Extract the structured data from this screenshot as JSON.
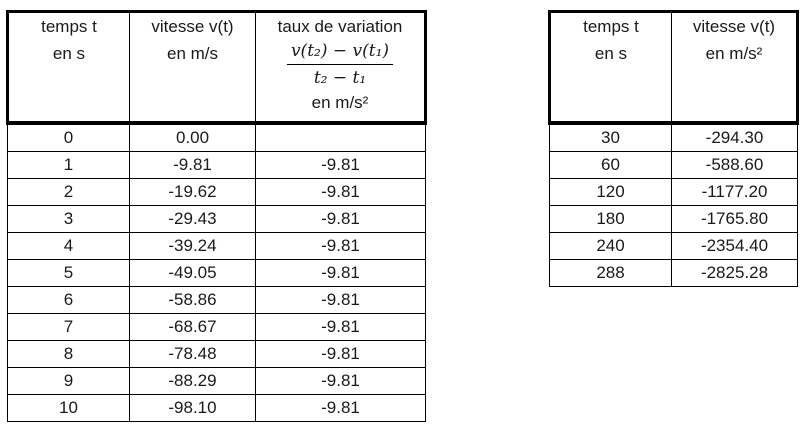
{
  "left_table": {
    "headers": {
      "temps_line1": "temps t",
      "temps_line2": "en s",
      "vitesse_line1": "vitesse v(t)",
      "vitesse_line2": "en m/s",
      "taux_line1": "taux de variation",
      "taux_numerator": "v(t₂) − v(t₁)",
      "taux_denominator": "t₂ − t₁",
      "taux_unit": "en m/s²"
    },
    "rows": [
      {
        "t": "0",
        "v": "0.00",
        "rate": ""
      },
      {
        "t": "1",
        "v": "-9.81",
        "rate": "-9.81"
      },
      {
        "t": "2",
        "v": "-19.62",
        "rate": "-9.81"
      },
      {
        "t": "3",
        "v": "-29.43",
        "rate": "-9.81"
      },
      {
        "t": "4",
        "v": "-39.24",
        "rate": "-9.81"
      },
      {
        "t": "5",
        "v": "-49.05",
        "rate": "-9.81"
      },
      {
        "t": "6",
        "v": "-58.86",
        "rate": "-9.81"
      },
      {
        "t": "7",
        "v": "-68.67",
        "rate": "-9.81"
      },
      {
        "t": "8",
        "v": "-78.48",
        "rate": "-9.81"
      },
      {
        "t": "9",
        "v": "-88.29",
        "rate": "-9.81"
      },
      {
        "t": "10",
        "v": "-98.10",
        "rate": "-9.81"
      }
    ]
  },
  "right_table": {
    "headers": {
      "temps_line1": "temps t",
      "temps_line2": "en s",
      "vitesse_line1": "vitesse v(t)",
      "vitesse_line2": "en m/s²"
    },
    "rows": [
      {
        "t": "30",
        "v": "-294.30"
      },
      {
        "t": "60",
        "v": "-588.60"
      },
      {
        "t": "120",
        "v": "-1177.20"
      },
      {
        "t": "180",
        "v": "-1765.80"
      },
      {
        "t": "240",
        "v": "-2354.40"
      },
      {
        "t": "288",
        "v": "-2825.28"
      }
    ]
  }
}
